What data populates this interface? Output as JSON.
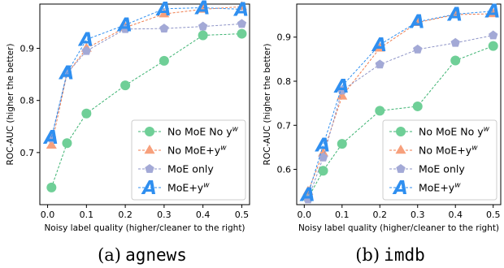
{
  "chart_data": [
    {
      "type": "line",
      "caption_prefix": "(a)",
      "caption_name": "agnews",
      "xlabel": "Noisy label quality (higher/cleaner to the right)",
      "ylabel": "ROC-AUC (higher the better)",
      "xlim": [
        -0.02,
        0.52
      ],
      "ylim": [
        0.6,
        0.985
      ],
      "xticks": [
        0.0,
        0.1,
        0.2,
        0.3,
        0.4,
        0.5
      ],
      "xtick_labels": [
        "0.0",
        "0.1",
        "0.2",
        "0.3",
        "0.4",
        "0.5"
      ],
      "yticks": [
        0.7,
        0.8,
        0.9
      ],
      "ytick_labels": [
        "0.7",
        "0.8",
        "0.9"
      ],
      "grid": false,
      "legend_position": "lower-right",
      "x": [
        0.01,
        0.05,
        0.1,
        0.2,
        0.3,
        0.4,
        0.5
      ],
      "series": [
        {
          "name": "No MoE No y",
          "superscript": "w",
          "color": "#6fcf97",
          "line_color": "#3cb371",
          "marker": "circle",
          "values": [
            0.633,
            0.718,
            0.775,
            0.829,
            0.876,
            0.925,
            0.928
          ]
        },
        {
          "name": "No MoE+y",
          "superscript": "w",
          "color": "#f7a07c",
          "line_color": "#ef7d4f",
          "marker": "triangle",
          "values": [
            0.714,
            0.851,
            0.9,
            0.94,
            0.966,
            0.975,
            0.98
          ]
        },
        {
          "name": "MoE only",
          "superscript": "",
          "color": "#a3a9d6",
          "line_color": "#8d93c7",
          "marker": "pentagon",
          "values": [
            0.727,
            0.852,
            0.895,
            0.937,
            0.938,
            0.942,
            0.947
          ]
        },
        {
          "name": "MoE+y",
          "superscript": "w",
          "color": "#2f8ff0",
          "line_color": "#2f8ff0",
          "marker": "letter-A",
          "marker_text": "A",
          "values": [
            0.729,
            0.853,
            0.917,
            0.945,
            0.976,
            0.978,
            0.975
          ]
        }
      ]
    },
    {
      "type": "line",
      "caption_prefix": "(b)",
      "caption_name": "imdb",
      "xlabel": "Noisy label quality (higher/cleaner to the right)",
      "ylabel": "ROC-AUC (higher the better)",
      "xlim": [
        -0.02,
        0.52
      ],
      "ylim": [
        0.52,
        0.975
      ],
      "xticks": [
        0.0,
        0.1,
        0.2,
        0.3,
        0.4,
        0.5
      ],
      "xtick_labels": [
        "0.0",
        "0.1",
        "0.2",
        "0.3",
        "0.4",
        "0.5"
      ],
      "yticks": [
        0.6,
        0.7,
        0.8,
        0.9
      ],
      "ytick_labels": [
        "0.6",
        "0.7",
        "0.8",
        "0.9"
      ],
      "grid": false,
      "legend_position": "lower-right",
      "x": [
        0.01,
        0.05,
        0.1,
        0.2,
        0.3,
        0.4,
        0.5
      ],
      "series": [
        {
          "name": "No MoE No y",
          "superscript": "w",
          "color": "#6fcf97",
          "line_color": "#3cb371",
          "marker": "circle",
          "values": [
            0.535,
            0.597,
            0.658,
            0.733,
            0.743,
            0.847,
            0.88
          ]
        },
        {
          "name": "No MoE+y",
          "superscript": "w",
          "color": "#f7a07c",
          "line_color": "#ef7d4f",
          "marker": "triangle",
          "values": [
            0.55,
            0.637,
            0.766,
            0.875,
            0.933,
            0.951,
            0.953
          ]
        },
        {
          "name": "MoE only",
          "superscript": "",
          "color": "#a3a9d6",
          "line_color": "#8d93c7",
          "marker": "pentagon",
          "values": [
            0.532,
            0.627,
            0.779,
            0.838,
            0.872,
            0.887,
            0.904
          ]
        },
        {
          "name": "MoE+y",
          "superscript": "w",
          "color": "#2f8ff0",
          "line_color": "#2f8ff0",
          "marker": "letter-A",
          "marker_text": "A",
          "values": [
            0.543,
            0.655,
            0.789,
            0.883,
            0.935,
            0.952,
            0.959
          ]
        }
      ]
    }
  ]
}
